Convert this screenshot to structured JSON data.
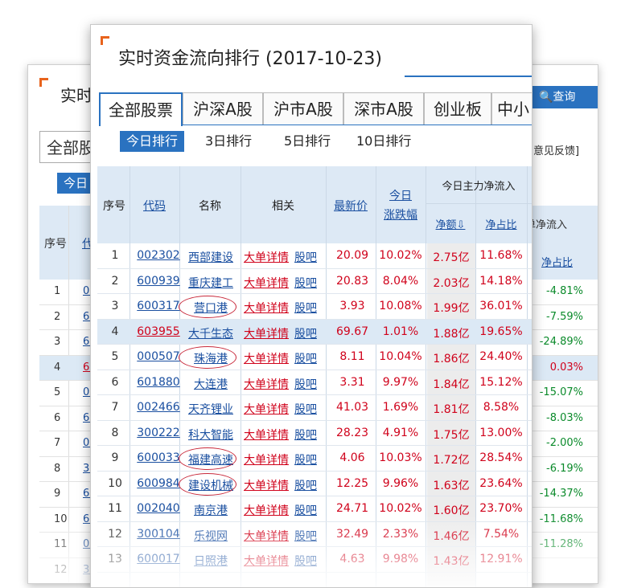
{
  "back_panel": {
    "title": "实时",
    "query_button": "🔍查询",
    "tab_all": "全部股",
    "today": "今日",
    "feedback": "意见反馈]",
    "col_seq": "序号",
    "col_code": "代",
    "col_net_flow": "单净流入",
    "col_ratio": "净占比",
    "rows": [
      {
        "seq": "1",
        "code": "002",
        "ratio": "-4.81%",
        "code_red": false,
        "ratio_red": false
      },
      {
        "seq": "2",
        "code": "600",
        "ratio": "-7.59%",
        "code_red": false,
        "ratio_red": false
      },
      {
        "seq": "3",
        "code": "600",
        "ratio": "-24.89%",
        "code_red": false,
        "ratio_red": false
      },
      {
        "seq": "4",
        "code": "603",
        "ratio": "0.03%",
        "code_red": true,
        "ratio_red": true
      },
      {
        "seq": "5",
        "code": "000",
        "ratio": "-15.07%",
        "code_red": false,
        "ratio_red": false
      },
      {
        "seq": "6",
        "code": "601",
        "ratio": "-8.03%",
        "code_red": false,
        "ratio_red": false
      },
      {
        "seq": "7",
        "code": "002",
        "ratio": "-2.00%",
        "code_red": false,
        "ratio_red": false
      },
      {
        "seq": "8",
        "code": "300",
        "ratio": "-6.19%",
        "code_red": false,
        "ratio_red": false
      },
      {
        "seq": "9",
        "code": "600",
        "ratio": "-14.37%",
        "code_red": false,
        "ratio_red": false
      },
      {
        "seq": "10",
        "code": "600",
        "ratio": "-11.68%",
        "code_red": false,
        "ratio_red": false
      },
      {
        "seq": "11",
        "code": "002",
        "ratio": "-11.28%",
        "code_red": false,
        "ratio_red": false
      },
      {
        "seq": "12",
        "code": "300",
        "ratio": "",
        "code_red": false,
        "ratio_red": false
      }
    ]
  },
  "front_panel": {
    "title": "实时资金流向排行 (2017-10-23)",
    "market_tabs": [
      "全部股票",
      "沪深A股",
      "沪市A股",
      "深市A股",
      "创业板",
      "中小"
    ],
    "period_tabs": [
      "今日排行",
      "3日排行",
      "5日排行",
      "10日排行"
    ],
    "headers": {
      "seq": "序号",
      "code": "代码",
      "name": "名称",
      "related": "相关",
      "price": "最新价",
      "change_l1": "今日",
      "change_l2": "涨跌幅",
      "main_flow": "今日主力净流入",
      "net": "净额⇩",
      "ratio": "净占比"
    },
    "link_big": "大单详情",
    "link_bar": "股吧",
    "rows": [
      {
        "seq": "1",
        "code": "002302",
        "name": "西部建设",
        "price": "20.09",
        "change": "10.02%",
        "net": "2.75亿",
        "ratio": "11.68%",
        "hl": false,
        "code_red": false
      },
      {
        "seq": "2",
        "code": "600939",
        "name": "重庆建工",
        "price": "20.83",
        "change": "8.04%",
        "net": "2.03亿",
        "ratio": "14.18%",
        "hl": false,
        "code_red": false
      },
      {
        "seq": "3",
        "code": "600317",
        "name": "营口港",
        "price": "3.93",
        "change": "10.08%",
        "net": "1.99亿",
        "ratio": "36.01%",
        "hl": false,
        "code_red": false
      },
      {
        "seq": "4",
        "code": "603955",
        "name": "大千生态",
        "price": "69.67",
        "change": "1.01%",
        "net": "1.88亿",
        "ratio": "19.65%",
        "hl": true,
        "code_red": true
      },
      {
        "seq": "5",
        "code": "000507",
        "name": "珠海港",
        "price": "8.11",
        "change": "10.04%",
        "net": "1.86亿",
        "ratio": "24.40%",
        "hl": false,
        "code_red": false
      },
      {
        "seq": "6",
        "code": "601880",
        "name": "大连港",
        "price": "3.31",
        "change": "9.97%",
        "net": "1.84亿",
        "ratio": "15.12%",
        "hl": false,
        "code_red": false
      },
      {
        "seq": "7",
        "code": "002466",
        "name": "天齐锂业",
        "price": "41.03",
        "change": "1.69%",
        "net": "1.81亿",
        "ratio": "8.58%",
        "hl": false,
        "code_red": false
      },
      {
        "seq": "8",
        "code": "300222",
        "name": "科大智能",
        "price": "28.23",
        "change": "4.91%",
        "net": "1.75亿",
        "ratio": "13.00%",
        "hl": false,
        "code_red": false
      },
      {
        "seq": "9",
        "code": "600033",
        "name": "福建高速",
        "price": "4.06",
        "change": "10.03%",
        "net": "1.72亿",
        "ratio": "28.54%",
        "hl": false,
        "code_red": false
      },
      {
        "seq": "10",
        "code": "600984",
        "name": "建设机械",
        "price": "12.25",
        "change": "9.96%",
        "net": "1.63亿",
        "ratio": "23.64%",
        "hl": false,
        "code_red": false
      },
      {
        "seq": "11",
        "code": "002040",
        "name": "南京港",
        "price": "24.71",
        "change": "10.02%",
        "net": "1.60亿",
        "ratio": "23.70%",
        "hl": false,
        "code_red": false
      },
      {
        "seq": "12",
        "code": "300104",
        "name": "乐视网",
        "price": "32.49",
        "change": "2.33%",
        "net": "1.46亿",
        "ratio": "7.54%",
        "hl": false,
        "code_red": false
      },
      {
        "seq": "13",
        "code": "600017",
        "name": "日照港",
        "price": "4.63",
        "change": "9.98%",
        "net": "1.43亿",
        "ratio": "12.91%",
        "hl": false,
        "code_red": false
      }
    ],
    "circled_rows": [
      3,
      5,
      9,
      10
    ]
  },
  "colors": {
    "accent": "#2a72c0",
    "rise": "#d0021b",
    "fall": "#0a8a2a",
    "corner_mark": "#e8631c",
    "circle": "#c8283a"
  }
}
